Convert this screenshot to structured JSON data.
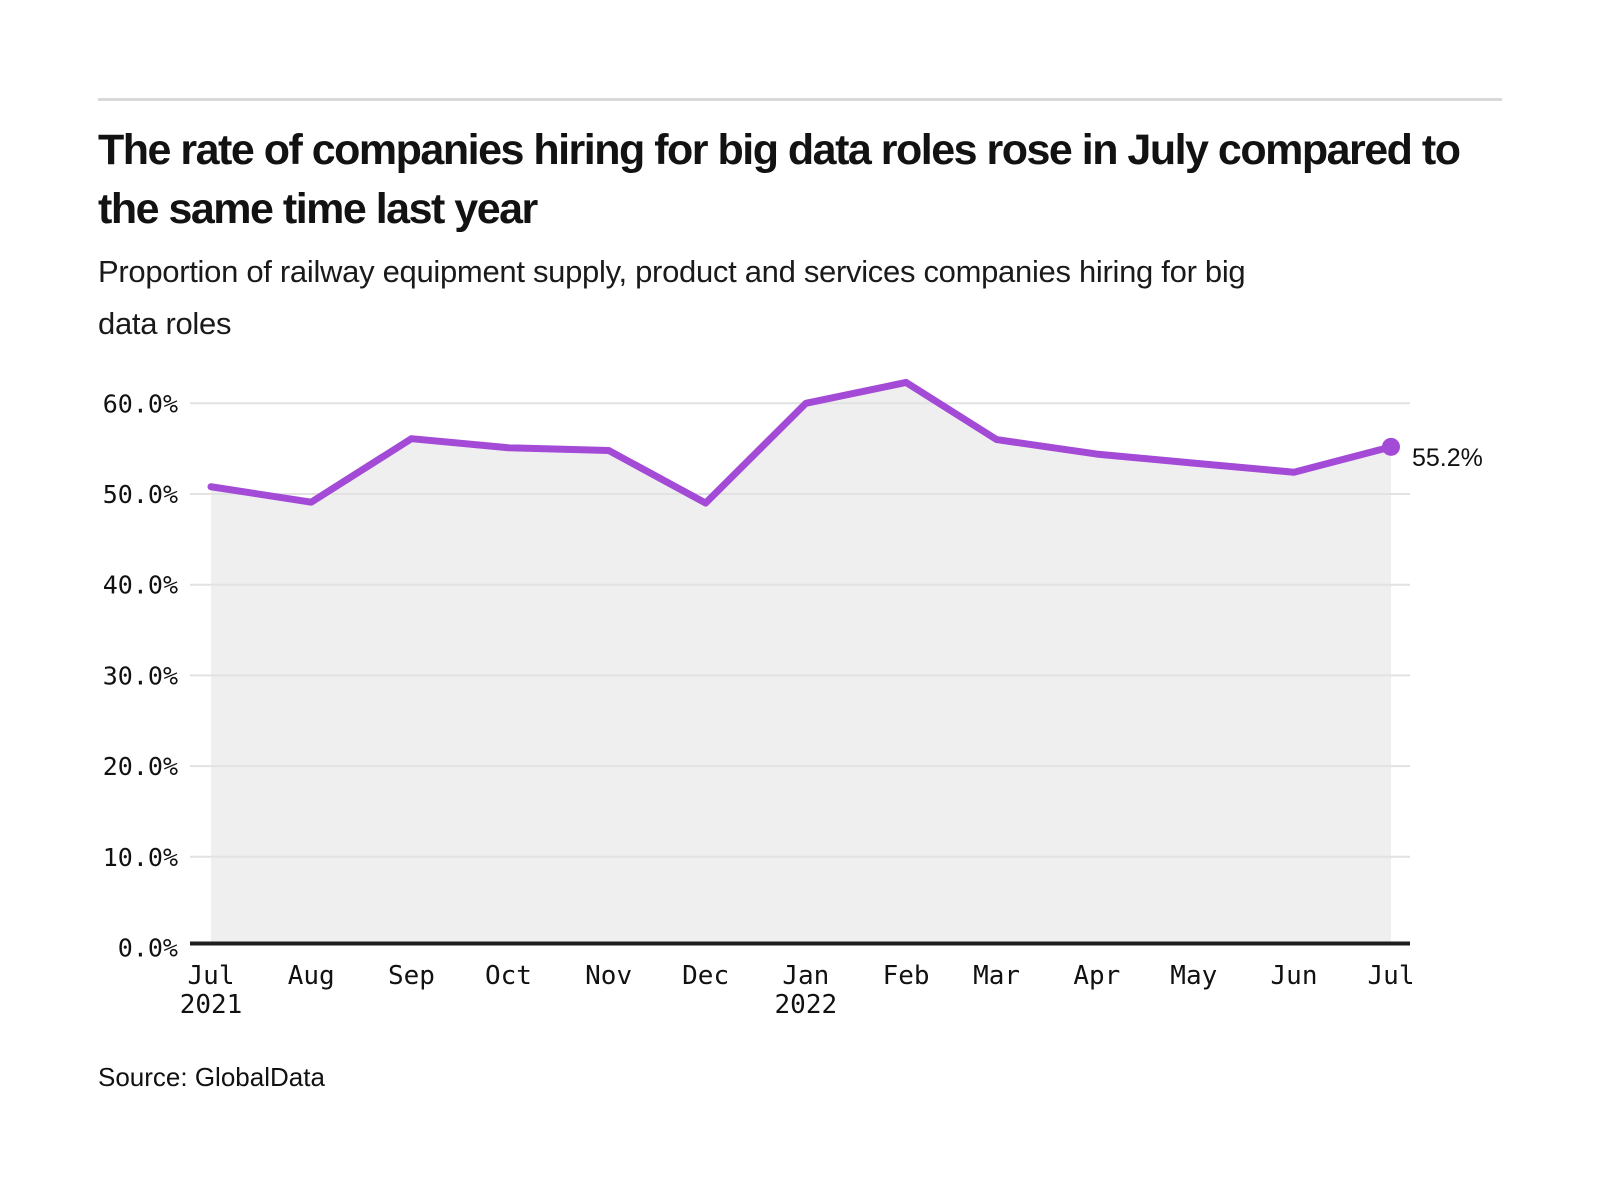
{
  "page": {
    "title": "The rate of companies hiring for big data roles rose in July compared to the same time last year",
    "subtitle": "Proportion of railway equipment supply, product and services companies hiring for big data roles",
    "source": "Source: GlobalData"
  },
  "colors": {
    "line": "#A34AD7",
    "area": "#EFEFEF",
    "grid": "#E2E2E2",
    "axis": "#1F1F1F",
    "text": "#111111",
    "divider": "#D9D9D9"
  },
  "chart_data": {
    "type": "area",
    "title": "The rate of companies hiring for big data roles rose in July compared to the same time last year",
    "subtitle": "Proportion of railway equipment supply, product and services companies hiring for big data roles",
    "source": "Source: GlobalData",
    "categories": [
      "Jul",
      "Aug",
      "Sep",
      "Oct",
      "Nov",
      "Dec",
      "Jan",
      "Feb",
      "Mar",
      "Apr",
      "May",
      "Jun",
      "Jul"
    ],
    "category_years": [
      "2021",
      "",
      "",
      "",
      "",
      "",
      "2022",
      "",
      "",
      "",
      "",
      "",
      ""
    ],
    "values": [
      50.8,
      49.1,
      56.1,
      55.1,
      54.8,
      49.0,
      60.0,
      62.3,
      56.0,
      54.4,
      53.4,
      52.4,
      55.2
    ],
    "unit": "%",
    "ylim": [
      0,
      65
    ],
    "yticks": [
      0,
      10,
      20,
      30,
      40,
      50,
      60
    ],
    "ytick_labels": [
      "0.0%",
      "10.0%",
      "20.0%",
      "30.0%",
      "40.0%",
      "50.0%",
      "60.0%"
    ],
    "grid": "horizontal",
    "legend": "none",
    "end_label": "55.2%",
    "xlabel": "",
    "ylabel": ""
  }
}
